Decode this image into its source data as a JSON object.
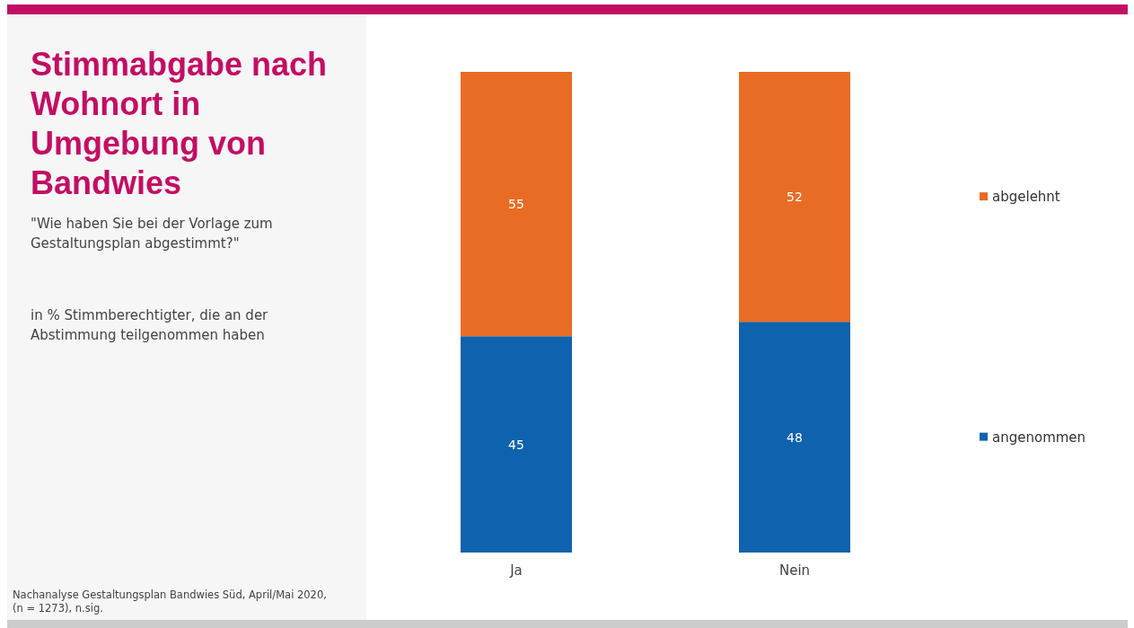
{
  "chart_data": {
    "type": "bar",
    "stacked": true,
    "title": "Stimmabgabe nach Wohnort in Umgebung von Bandwies",
    "subtitle": "\"Wie haben Sie bei der Vorlage zum Gestaltungsplan abgestimmt?\"",
    "annotations": [
      "in % Stimmberechtigter, die an der Abstimmung teilgenommen haben",
      "Nachanalyse Gestaltungsplan Bandwies Süd, April/Mai 2020, (n = 1273), n.sig."
    ],
    "categories": [
      "Ja",
      "Nein"
    ],
    "series": [
      {
        "name": "angenommen",
        "color": "#0f62ae",
        "values": [
          45,
          48
        ]
      },
      {
        "name": "abgelehnt",
        "color": "#e86c24",
        "values": [
          55,
          52
        ]
      }
    ],
    "ylim": [
      0,
      100
    ],
    "tick_labels": "x",
    "data_labels": true,
    "legend": "right",
    "grid": false
  }
}
